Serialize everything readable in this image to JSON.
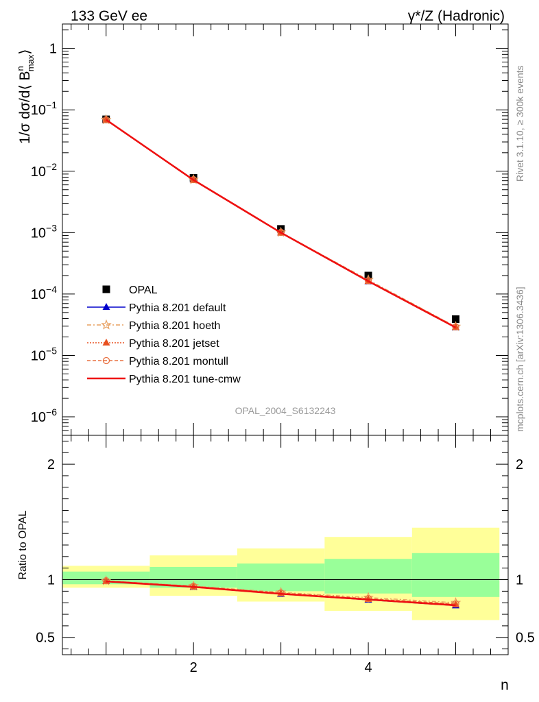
{
  "header": {
    "left": "133 GeV ee",
    "right": "γ*/Z (Hadronic)"
  },
  "side_text": {
    "top": "Rivet 3.1.10, ≥ 300k events",
    "bottom": "mcplots.cern.ch [arXiv:1306.3436]"
  },
  "watermark": "OPAL_2004_S6132243",
  "colors": {
    "data": "#000000",
    "default": "#0000cc",
    "hoeth": "#e8a060",
    "jetset": "#e85020",
    "montull": "#e87040",
    "tunecmw": "#ee1111",
    "band_inner": "#99ff99",
    "band_outer": "#ffff99"
  },
  "chart_data": [
    {
      "type": "scatter",
      "panel": "main",
      "ylabel_parts": {
        "pre": "1/σ dσ/d⟨ B",
        "sup": "n",
        "sub": "max",
        "post": "⟩"
      },
      "yscale": "log",
      "ylim": [
        5e-07,
        2.5
      ],
      "xlim": [
        0.5,
        5.6
      ],
      "y_ticks": [
        {
          "v": 1,
          "base": "1",
          "exp": ""
        },
        {
          "v": 0.1,
          "base": "10",
          "exp": "−1"
        },
        {
          "v": 0.01,
          "base": "10",
          "exp": "−2"
        },
        {
          "v": 0.001,
          "base": "10",
          "exp": "−3"
        },
        {
          "v": 0.0001,
          "base": "10",
          "exp": "−4"
        },
        {
          "v": 1e-05,
          "base": "10",
          "exp": "−5"
        },
        {
          "v": 1e-06,
          "base": "10",
          "exp": "−6"
        }
      ],
      "x": [
        1,
        2,
        3,
        4,
        5
      ],
      "data": {
        "name": "OPAL",
        "values": [
          0.07,
          0.0078,
          0.00115,
          0.0002,
          3.9e-05
        ]
      },
      "series": [
        {
          "name": "Pythia 8.201 default",
          "key": "default",
          "marker": "triangle",
          "dash": "",
          "values": [
            0.069,
            0.0072,
            0.001,
            0.00016,
            2.85e-05
          ]
        },
        {
          "name": "Pythia 8.201 hoeth",
          "key": "hoeth",
          "marker": "star",
          "dash": "6,3,2,3",
          "values": [
            0.069,
            0.0073,
            0.00101,
            0.00017,
            2.95e-05
          ]
        },
        {
          "name": "Pythia 8.201 jetset",
          "key": "jetset",
          "marker": "triangle",
          "dash": "2,2",
          "values": [
            0.069,
            0.0072,
            0.001,
            0.000162,
            2.9e-05
          ]
        },
        {
          "name": "Pythia 8.201 montull",
          "key": "montull",
          "marker": "circle",
          "dash": "5,3",
          "values": [
            0.069,
            0.0073,
            0.00101,
            0.000165,
            2.92e-05
          ]
        },
        {
          "name": "Pythia 8.201 tune-cmw",
          "key": "tunecmw",
          "marker": "none",
          "dash": "",
          "values": [
            0.069,
            0.0072,
            0.001,
            0.000162,
            2.85e-05
          ]
        }
      ],
      "legend": "bottom-left"
    },
    {
      "type": "line",
      "panel": "ratio",
      "ylabel": "Ratio to OPAL",
      "ylim": [
        0.35,
        2.25
      ],
      "xlim": [
        0.5,
        5.6
      ],
      "xlabel": "n",
      "x_tick_labels": [
        "2",
        "4"
      ],
      "y_tick_labels": [
        "0.5",
        "1",
        "2"
      ],
      "bands": [
        {
          "x0": 0.5,
          "x1": 1.5,
          "inner": [
            0.96,
            1.07
          ],
          "outer": [
            0.93,
            1.12
          ]
        },
        {
          "x0": 1.5,
          "x1": 2.5,
          "inner": [
            0.93,
            1.11
          ],
          "outer": [
            0.86,
            1.21
          ]
        },
        {
          "x0": 2.5,
          "x1": 3.5,
          "inner": [
            0.9,
            1.14
          ],
          "outer": [
            0.81,
            1.27
          ]
        },
        {
          "x0": 3.5,
          "x1": 4.5,
          "inner": [
            0.88,
            1.18
          ],
          "outer": [
            0.73,
            1.37
          ]
        },
        {
          "x0": 4.5,
          "x1": 5.5,
          "inner": [
            0.85,
            1.23
          ],
          "outer": [
            0.65,
            1.45
          ]
        }
      ],
      "x": [
        1,
        2,
        3,
        4,
        5
      ],
      "series": [
        {
          "name": "Pythia 8.201 default",
          "key": "default",
          "marker": "triangle",
          "dash": "",
          "values": [
            0.985,
            0.935,
            0.875,
            0.825,
            0.775
          ]
        },
        {
          "name": "Pythia 8.201 hoeth",
          "key": "hoeth",
          "marker": "star",
          "dash": "6,3,2,3",
          "values": [
            0.99,
            0.945,
            0.89,
            0.845,
            0.8
          ]
        },
        {
          "name": "Pythia 8.201 jetset",
          "key": "jetset",
          "marker": "triangle",
          "dash": "2,2",
          "values": [
            0.985,
            0.94,
            0.88,
            0.83,
            0.785
          ]
        },
        {
          "name": "Pythia 8.201 montull",
          "key": "montull",
          "marker": "circle",
          "dash": "5,3",
          "values": [
            0.99,
            0.942,
            0.885,
            0.835,
            0.79
          ]
        },
        {
          "name": "Pythia 8.201 tune-cmw",
          "key": "tunecmw",
          "marker": "none",
          "dash": "",
          "values": [
            0.985,
            0.937,
            0.877,
            0.828,
            0.778
          ]
        }
      ]
    }
  ]
}
